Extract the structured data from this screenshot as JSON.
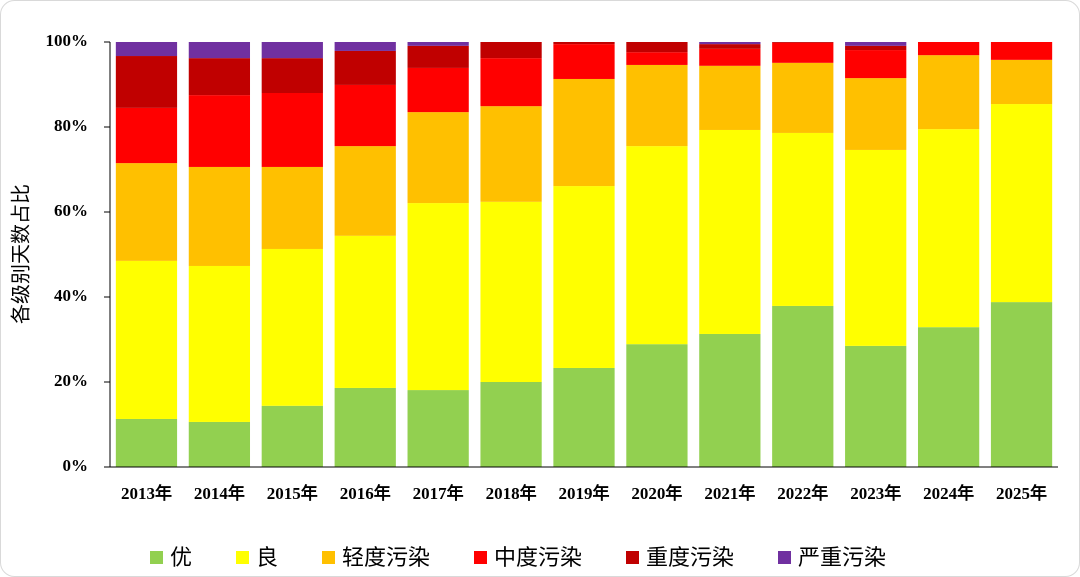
{
  "chart_data": {
    "type": "stacked_bar",
    "y_label": "各级别天数占比",
    "categories": [
      "2013年",
      "2014年",
      "2015年",
      "2016年",
      "2017年",
      "2018年",
      "2019年",
      "2020年",
      "2021年",
      "2022年",
      "2023年",
      "2024年",
      "2025年"
    ],
    "series": [
      {
        "name": "优",
        "color": "#92d050",
        "values": [
          11.3,
          10.6,
          14.4,
          18.6,
          18.1,
          20.0,
          23.3,
          28.9,
          31.3,
          37.9,
          28.5,
          32.9,
          38.8
        ]
      },
      {
        "name": "良",
        "color": "#ffff00",
        "values": [
          37.2,
          36.7,
          36.9,
          35.8,
          44.0,
          42.4,
          42.8,
          46.6,
          48.0,
          40.7,
          46.1,
          46.6,
          46.6
        ]
      },
      {
        "name": "轻度污染",
        "color": "#ffc000",
        "values": [
          23.0,
          23.3,
          19.3,
          21.1,
          21.4,
          22.5,
          25.2,
          19.1,
          15.1,
          16.5,
          16.9,
          17.4,
          10.4
        ]
      },
      {
        "name": "中度污染",
        "color": "#ff0000",
        "values": [
          13.0,
          16.9,
          17.4,
          14.4,
          10.4,
          11.3,
          8.2,
          3.0,
          4.0,
          4.7,
          6.6,
          3.1,
          4.2
        ]
      },
      {
        "name": "重度污染",
        "color": "#c00000",
        "values": [
          12.2,
          8.7,
          8.2,
          8.0,
          5.2,
          3.8,
          0.5,
          2.4,
          1.1,
          0.2,
          1.0,
          0,
          0
        ]
      },
      {
        "name": "严重污染",
        "color": "#7030a0",
        "values": [
          3.3,
          3.8,
          3.8,
          2.1,
          0.9,
          0,
          0,
          0,
          0.5,
          0,
          0.9,
          0,
          0
        ]
      }
    ],
    "ylim": [
      0,
      100
    ],
    "yticks": [
      {
        "value": 0,
        "label": "0%"
      },
      {
        "value": 20,
        "label": "20%"
      },
      {
        "value": 40,
        "label": "40%"
      },
      {
        "value": 60,
        "label": "60%"
      },
      {
        "value": 80,
        "label": "80%"
      },
      {
        "value": 100,
        "label": "100%"
      }
    ],
    "legend": "bottom"
  }
}
